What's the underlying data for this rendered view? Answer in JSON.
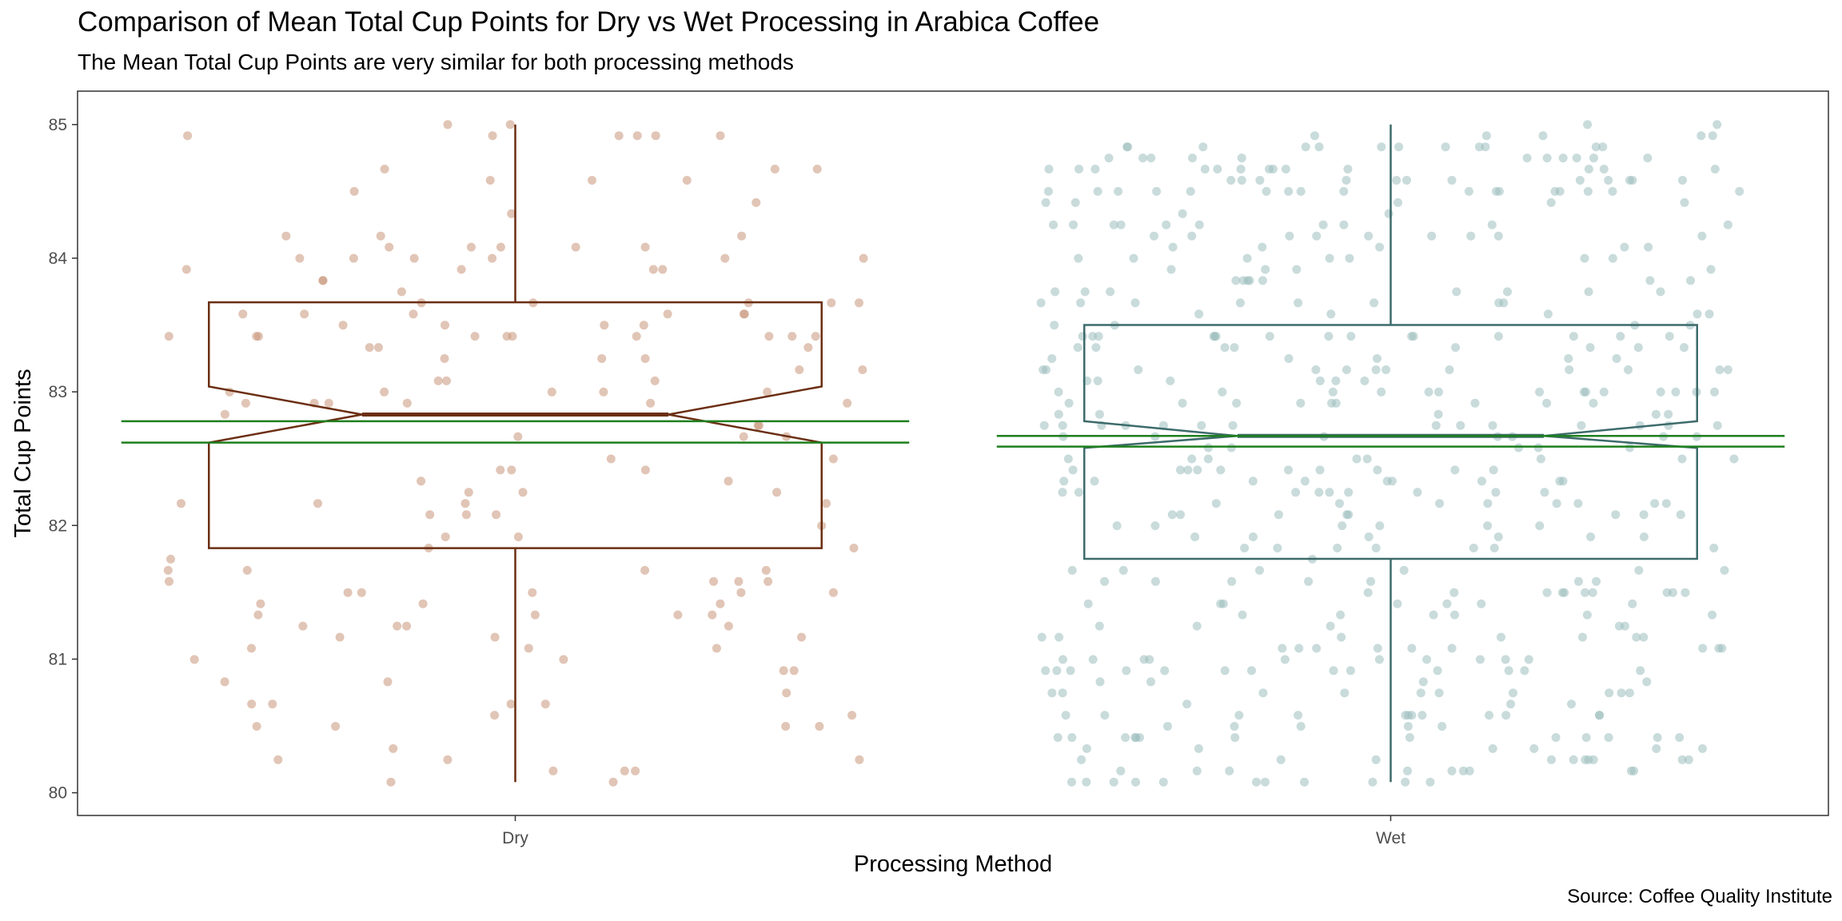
{
  "chart_data": {
    "type": "boxplot",
    "title": "Comparison of Mean Total Cup Points for Dry vs Wet Processing in Arabica Coffee",
    "subtitle": "The Mean Total Cup Points are very similar for both processing methods",
    "caption": "Source: Coffee Quality Institute",
    "xlabel": "Processing Method",
    "ylabel": "Total Cup Points",
    "ylim": [
      79.83,
      85.25
    ],
    "yticks": [
      80,
      81,
      82,
      83,
      84,
      85
    ],
    "categories": [
      "Dry",
      "Wet"
    ],
    "grid": false,
    "legend": "none",
    "series": [
      {
        "category": "Dry",
        "color": "#6B2E12",
        "point_color": "#C8957A",
        "box": {
          "min": 80.08,
          "q1": 81.83,
          "median": 82.83,
          "q3": 83.67,
          "max": 85.0,
          "notch_low": 82.62,
          "notch_high": 83.04
        },
        "mean_ci": [
          82.62,
          82.78
        ],
        "point_count": 170
      },
      {
        "category": "Wet",
        "color": "#3D6B6B",
        "point_color": "#9DBDBD",
        "box": {
          "min": 80.08,
          "q1": 81.75,
          "median": 82.67,
          "q3": 83.5,
          "max": 85.0,
          "notch_low": 82.58,
          "notch_high": 82.78
        },
        "mean_ci": [
          82.59,
          82.67
        ],
        "point_count": 480
      }
    ],
    "mean_ci_color": "#1E7F1E"
  }
}
